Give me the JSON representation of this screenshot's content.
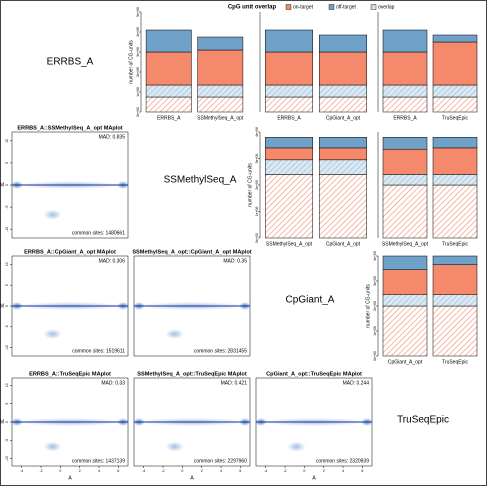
{
  "title": "CpG unit overlap",
  "legend": [
    {
      "name": "on-target",
      "color": "#f4896b"
    },
    {
      "name": "off-target",
      "color": "#6fa1c9"
    },
    {
      "name": "overlap",
      "color": "#dde9f2"
    }
  ],
  "diagonal": [
    "ERRBS_A",
    "SSMethylSeq_A",
    "CpGiant_A",
    "TruSeqEpic"
  ],
  "chart_data": [
    {
      "type": "bar",
      "ylabel": "number of CG-units",
      "categories": [
        "ERRBS_A",
        "SSMethylSeq_A_opt"
      ],
      "series": [
        {
          "color": "#f4896b",
          "hatch": true,
          "values": [
            750000,
            750000
          ]
        },
        {
          "color": "#6fa1c9",
          "hatch": true,
          "values": [
            600000,
            600000
          ]
        },
        {
          "color": "#f4896b",
          "hatch": false,
          "values": [
            1650000,
            1750000
          ]
        },
        {
          "color": "#6fa1c9",
          "hatch": false,
          "values": [
            1100000,
            650000
          ]
        }
      ],
      "ylim": [
        0,
        5000000
      ],
      "yticks": [
        {
          "value": 0,
          "label": "0e+00"
        },
        {
          "value": 1000000,
          "label": "1e+06"
        },
        {
          "value": 2000000,
          "label": "2e+06"
        },
        {
          "value": 3000000,
          "label": "3e+06"
        },
        {
          "value": 4000000,
          "label": "4e+06"
        },
        {
          "value": 5000000,
          "label": "5e+06"
        }
      ]
    },
    {
      "type": "bar",
      "categories": [
        "ERRBS_A",
        "CpGiant_A_opt"
      ],
      "series": [
        {
          "color": "#f4896b",
          "hatch": true,
          "values": [
            750000,
            750000
          ]
        },
        {
          "color": "#6fa1c9",
          "hatch": true,
          "values": [
            600000,
            600000
          ]
        },
        {
          "color": "#f4896b",
          "hatch": false,
          "values": [
            1650000,
            1650000
          ]
        },
        {
          "color": "#6fa1c9",
          "hatch": false,
          "values": [
            1100000,
            850000
          ]
        }
      ],
      "ylim": [
        0,
        5000000
      ]
    },
    {
      "type": "bar",
      "categories": [
        "ERRBS_A",
        "TruSeqEpic"
      ],
      "series": [
        {
          "color": "#f4896b",
          "hatch": true,
          "values": [
            750000,
            750000
          ]
        },
        {
          "color": "#6fa1c9",
          "hatch": true,
          "values": [
            600000,
            600000
          ]
        },
        {
          "color": "#f4896b",
          "hatch": false,
          "values": [
            1650000,
            2150000
          ]
        },
        {
          "color": "#6fa1c9",
          "hatch": false,
          "values": [
            1100000,
            350000
          ]
        }
      ],
      "ylim": [
        0,
        5000000
      ]
    },
    {
      "type": "bar",
      "ylabel": "number of CG-units",
      "categories": [
        "SSMethylSeq_A_opt",
        "CpGiant_A_opt"
      ],
      "series": [
        {
          "color": "#f4896b",
          "hatch": true,
          "values": [
            2400000,
            2400000
          ]
        },
        {
          "color": "#6fa1c9",
          "hatch": true,
          "values": [
            550000,
            550000
          ]
        },
        {
          "color": "#f4896b",
          "hatch": false,
          "values": [
            450000,
            450000
          ]
        },
        {
          "color": "#6fa1c9",
          "hatch": false,
          "values": [
            400000,
            400000
          ]
        }
      ],
      "ylim": [
        0,
        4000000
      ],
      "yticks": [
        {
          "value": 0,
          "label": "0e+00"
        },
        {
          "value": 1000000,
          "label": "1e+06"
        },
        {
          "value": 2000000,
          "label": "2e+06"
        },
        {
          "value": 3000000,
          "label": "3e+06"
        },
        {
          "value": 4000000,
          "label": "4e+06"
        }
      ]
    },
    {
      "type": "bar",
      "categories": [
        "SSMethylSeq_A_opt",
        "TruSeqEpic"
      ],
      "series": [
        {
          "color": "#f4896b",
          "hatch": true,
          "values": [
            2000000,
            2000000
          ]
        },
        {
          "color": "#6fa1c9",
          "hatch": true,
          "values": [
            400000,
            400000
          ]
        },
        {
          "color": "#f4896b",
          "hatch": false,
          "values": [
            950000,
            1000000
          ]
        },
        {
          "color": "#6fa1c9",
          "hatch": false,
          "values": [
            450000,
            400000
          ]
        }
      ],
      "ylim": [
        0,
        4000000
      ]
    },
    {
      "type": "bar",
      "ylabel": "number of CG-units",
      "categories": [
        "CpGiant_A_opt",
        "TruSeqEpic"
      ],
      "series": [
        {
          "color": "#f4896b",
          "hatch": true,
          "values": [
            2000000,
            2000000
          ]
        },
        {
          "color": "#6fa1c9",
          "hatch": true,
          "values": [
            450000,
            450000
          ]
        },
        {
          "color": "#f4896b",
          "hatch": false,
          "values": [
            1000000,
            1200000
          ]
        },
        {
          "color": "#6fa1c9",
          "hatch": false,
          "values": [
            550000,
            350000
          ]
        }
      ],
      "ylim": [
        0,
        4000000
      ],
      "yticks": [
        {
          "value": 0,
          "label": "0e+00"
        },
        {
          "value": 1000000,
          "label": "1e+06"
        },
        {
          "value": 2000000,
          "label": "2e+06"
        },
        {
          "value": 3000000,
          "label": "3e+06"
        },
        {
          "value": 4000000,
          "label": "4e+06"
        }
      ]
    },
    {
      "type": "maplot",
      "title": "ERRBS_A::SSMethylSeq_A_opt MAplot",
      "mad": "MAD: 0.835",
      "sites": "common sites: 1480661",
      "ylabel": "M",
      "ylim": [
        -12,
        12
      ],
      "yticks": [
        -10,
        -5,
        0,
        5,
        10
      ],
      "xlim": [
        -5,
        7
      ]
    },
    {
      "type": "maplot",
      "title": "ERRBS_A::CpGiant_A_opt MAplot",
      "mad": "MAD: 0.306",
      "sites": "common sites: 1519611",
      "ylabel": "M",
      "ylim": [
        -12,
        12
      ],
      "yticks": [
        -10,
        -5,
        0,
        5,
        10
      ],
      "xlim": [
        -5,
        7
      ]
    },
    {
      "type": "maplot",
      "title": "SSMethylSeq_A_opt::CpGiant_A_opt MAplot",
      "mad": "MAD: 0.35",
      "sites": "common sites: 2831455",
      "ylim": [
        -12,
        12
      ],
      "xlim": [
        -5,
        7
      ]
    },
    {
      "type": "maplot",
      "title": "ERRBS_A::TruSeqEpic MAplot",
      "mad": "MAD: 0.33",
      "sites": "common sites: 1437139",
      "ylabel": "M",
      "xlabel": "A",
      "ylim": [
        -12,
        12
      ],
      "yticks": [
        -10,
        -5,
        0,
        5,
        10
      ],
      "xlim": [
        -5,
        7
      ],
      "xticks": [
        -4,
        -2,
        0,
        2,
        4,
        6
      ]
    },
    {
      "type": "maplot",
      "title": "SSMethylSeq_A_opt::TruSeqEpic MAplot",
      "mad": "MAD: 0.421",
      "sites": "common sites: 2297960",
      "xlabel": "A",
      "ylim": [
        -12,
        12
      ],
      "xlim": [
        -5,
        7
      ],
      "xticks": [
        -4,
        -2,
        0,
        2,
        4,
        6
      ]
    },
    {
      "type": "maplot",
      "title": "CpGiant_A_opt::TruSeqEpic MAplot",
      "mad": "MAD: 0.244",
      "sites": "common sites: 2320939",
      "xlabel": "A",
      "ylim": [
        -12,
        12
      ],
      "xlim": [
        -5,
        7
      ],
      "xticks": [
        -4,
        -2,
        0,
        2,
        4,
        6
      ]
    }
  ]
}
